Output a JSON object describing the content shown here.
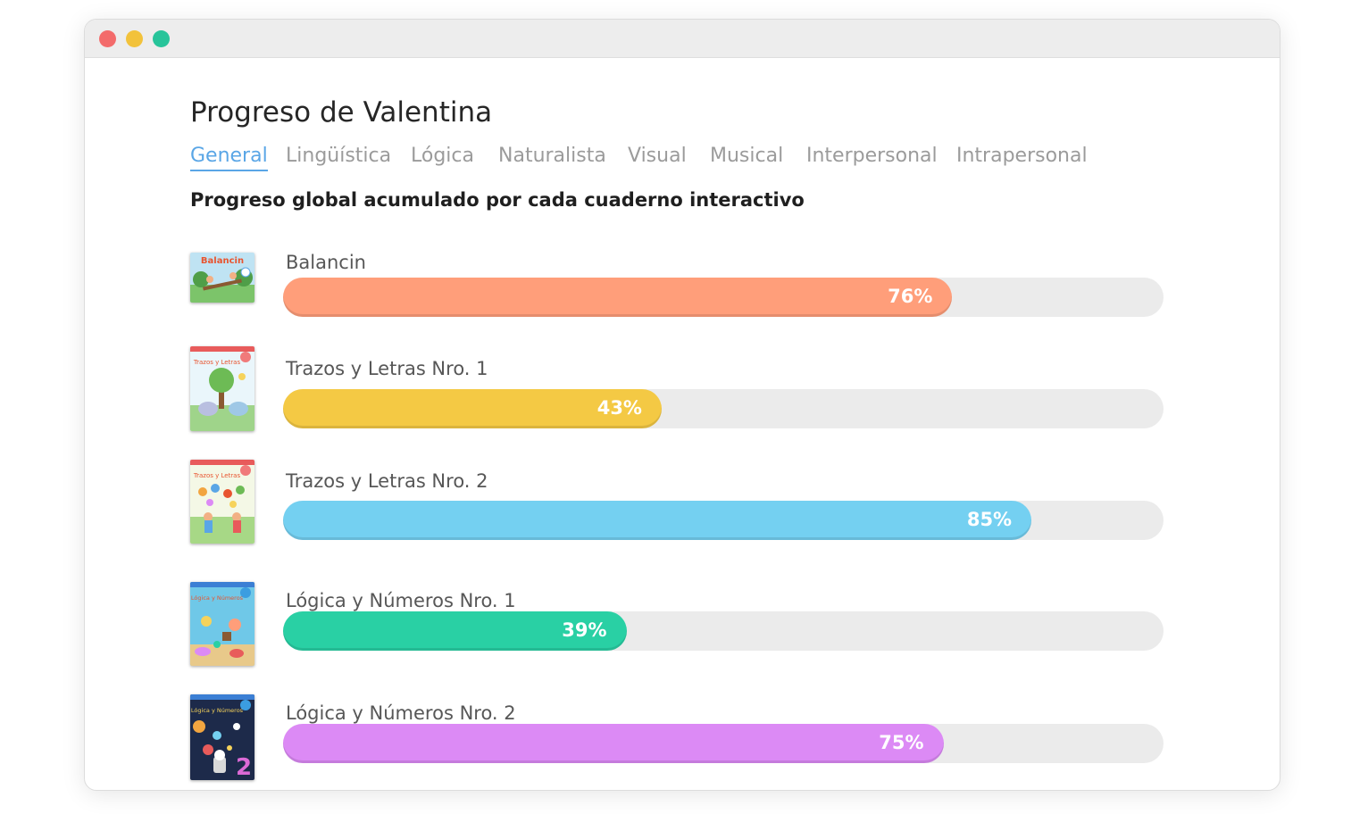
{
  "window": {
    "controls": {
      "close_color": "#f36b6b",
      "minimize_color": "#f2c23b",
      "maximize_color": "#27c49a"
    }
  },
  "page": {
    "title": "Progreso de Valentina",
    "subtitle": "Progreso global acumulado por cada cuaderno interactivo"
  },
  "tabs": [
    {
      "label": "General",
      "active": true
    },
    {
      "label": "Lingüística",
      "active": false
    },
    {
      "label": "Lógica",
      "active": false
    },
    {
      "label": "Naturalista",
      "active": false
    },
    {
      "label": "Visual",
      "active": false
    },
    {
      "label": "Musical",
      "active": false
    },
    {
      "label": "Interpersonal",
      "active": false
    },
    {
      "label": "Intrapersonal",
      "active": false
    }
  ],
  "colors": {
    "accent": "#5aa6e6",
    "track": "#ebebeb"
  },
  "books": [
    {
      "name": "Balancin",
      "percent": 76,
      "percent_label": "76%",
      "color": "#ff9e7a",
      "cover_icon": "balancin-cover-image",
      "cover_label": "Balancin"
    },
    {
      "name": "Trazos y Letras Nro. 1",
      "percent": 43,
      "percent_label": "43%",
      "color": "#f4c944",
      "cover_icon": "trazos-letras-1-cover-image",
      "cover_label": "Trazos y Letras"
    },
    {
      "name": "Trazos y Letras Nro. 2",
      "percent": 85,
      "percent_label": "85%",
      "color": "#74d0f1",
      "cover_icon": "trazos-letras-2-cover-image",
      "cover_label": "Trazos y Letras"
    },
    {
      "name": "Lógica y Números Nro. 1",
      "percent": 39,
      "percent_label": "39%",
      "color": "#29d0a4",
      "cover_icon": "logica-numeros-1-cover-image",
      "cover_label": "Lógica y Números"
    },
    {
      "name": "Lógica y Números Nro. 2",
      "percent": 75,
      "percent_label": "75%",
      "color": "#dc8af5",
      "cover_icon": "logica-numeros-2-cover-image",
      "cover_label": "Lógica y Números"
    }
  ]
}
